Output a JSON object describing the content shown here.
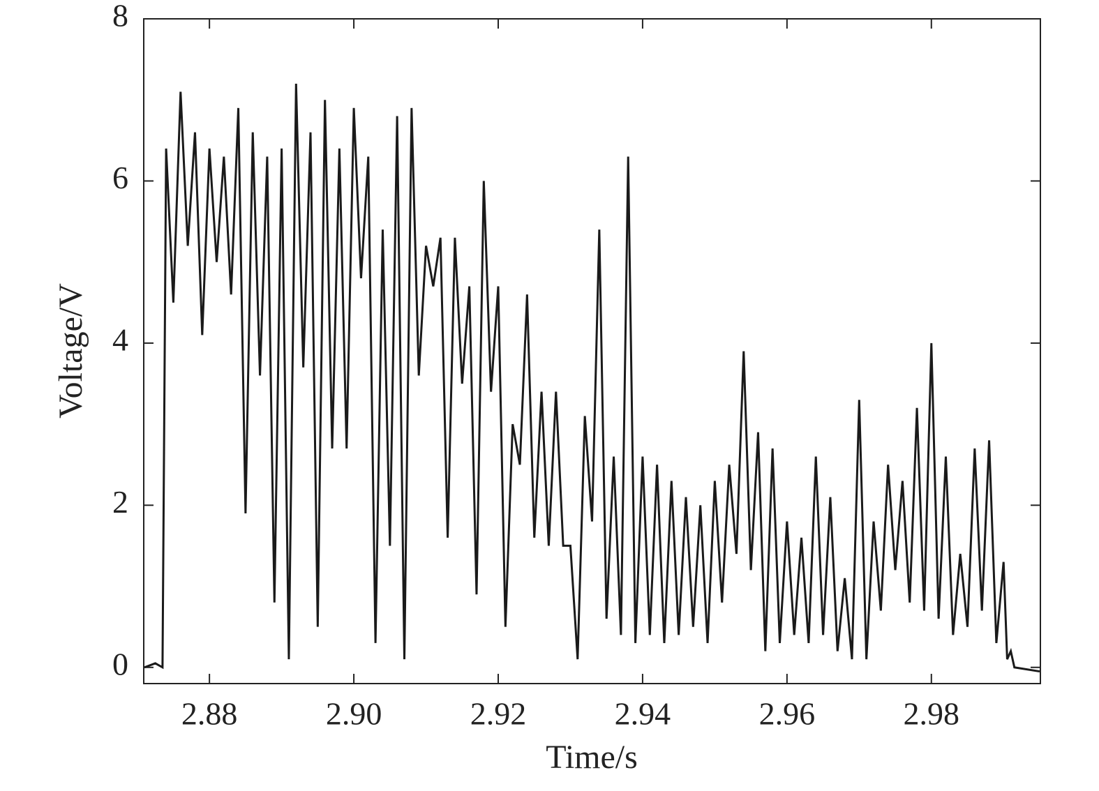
{
  "chart_data": {
    "type": "line",
    "x_label": "Time/s",
    "y_label": "Voltage/V",
    "xlim": [
      2.8709,
      2.9951
    ],
    "ylim": [
      -0.2,
      8
    ],
    "xticks": [
      2.88,
      {
        "value": 2.9,
        "label": "2.90"
      },
      2.92,
      2.94,
      2.96,
      2.98
    ],
    "yticks": [
      0,
      2,
      4,
      6,
      8
    ],
    "grid": false,
    "series": [
      {
        "name": "Voltage",
        "color": "#1a1a1a",
        "x": [
          2.871,
          2.8725,
          2.8735,
          2.874,
          2.875,
          2.876,
          2.877,
          2.878,
          2.879,
          2.88,
          2.881,
          2.882,
          2.883,
          2.884,
          2.885,
          2.886,
          2.887,
          2.888,
          2.889,
          2.89,
          2.891,
          2.892,
          2.893,
          2.894,
          2.895,
          2.896,
          2.897,
          2.898,
          2.899,
          2.9,
          2.901,
          2.902,
          2.903,
          2.904,
          2.905,
          2.906,
          2.907,
          2.908,
          2.909,
          2.91,
          2.911,
          2.912,
          2.913,
          2.914,
          2.915,
          2.916,
          2.917,
          2.918,
          2.919,
          2.92,
          2.921,
          2.922,
          2.923,
          2.924,
          2.925,
          2.926,
          2.927,
          2.928,
          2.929,
          2.93,
          2.931,
          2.932,
          2.933,
          2.934,
          2.935,
          2.936,
          2.937,
          2.938,
          2.939,
          2.94,
          2.941,
          2.942,
          2.943,
          2.944,
          2.945,
          2.946,
          2.947,
          2.948,
          2.949,
          2.95,
          2.951,
          2.952,
          2.953,
          2.954,
          2.955,
          2.956,
          2.957,
          2.958,
          2.959,
          2.96,
          2.961,
          2.962,
          2.963,
          2.964,
          2.965,
          2.966,
          2.967,
          2.968,
          2.969,
          2.97,
          2.971,
          2.972,
          2.973,
          2.974,
          2.975,
          2.976,
          2.977,
          2.978,
          2.979,
          2.98,
          2.981,
          2.982,
          2.983,
          2.984,
          2.985,
          2.986,
          2.987,
          2.988,
          2.989,
          2.99,
          2.9905,
          2.991,
          2.9915,
          2.995
        ],
        "values": [
          0,
          0.05,
          0,
          6.4,
          4.5,
          7.1,
          5.2,
          6.6,
          4.1,
          6.4,
          5.0,
          6.3,
          4.6,
          6.9,
          1.9,
          6.6,
          3.6,
          6.3,
          0.8,
          6.4,
          0.1,
          7.2,
          3.7,
          6.6,
          0.5,
          7.0,
          2.7,
          6.4,
          2.7,
          6.9,
          4.8,
          6.3,
          0.3,
          5.4,
          1.5,
          6.8,
          0.1,
          6.9,
          3.6,
          5.2,
          4.7,
          5.3,
          1.6,
          5.3,
          3.5,
          4.7,
          0.9,
          6.0,
          3.4,
          4.7,
          0.5,
          3.0,
          2.5,
          4.6,
          1.6,
          3.4,
          1.5,
          3.4,
          1.5,
          1.5,
          0.1,
          3.1,
          1.8,
          5.4,
          0.6,
          2.6,
          0.4,
          6.3,
          0.3,
          2.6,
          0.4,
          2.5,
          0.3,
          2.3,
          0.4,
          2.1,
          0.5,
          2.0,
          0.3,
          2.3,
          0.8,
          2.5,
          1.4,
          3.9,
          1.2,
          2.9,
          0.2,
          2.7,
          0.3,
          1.8,
          0.4,
          1.6,
          0.3,
          2.6,
          0.4,
          2.1,
          0.2,
          1.1,
          0.1,
          3.3,
          0.1,
          1.8,
          0.7,
          2.5,
          1.2,
          2.3,
          0.8,
          3.2,
          0.7,
          4.0,
          0.6,
          2.6,
          0.4,
          1.4,
          0.5,
          2.7,
          0.7,
          2.8,
          0.3,
          1.3,
          0.1,
          0.2,
          0,
          -0.05
        ]
      }
    ]
  }
}
